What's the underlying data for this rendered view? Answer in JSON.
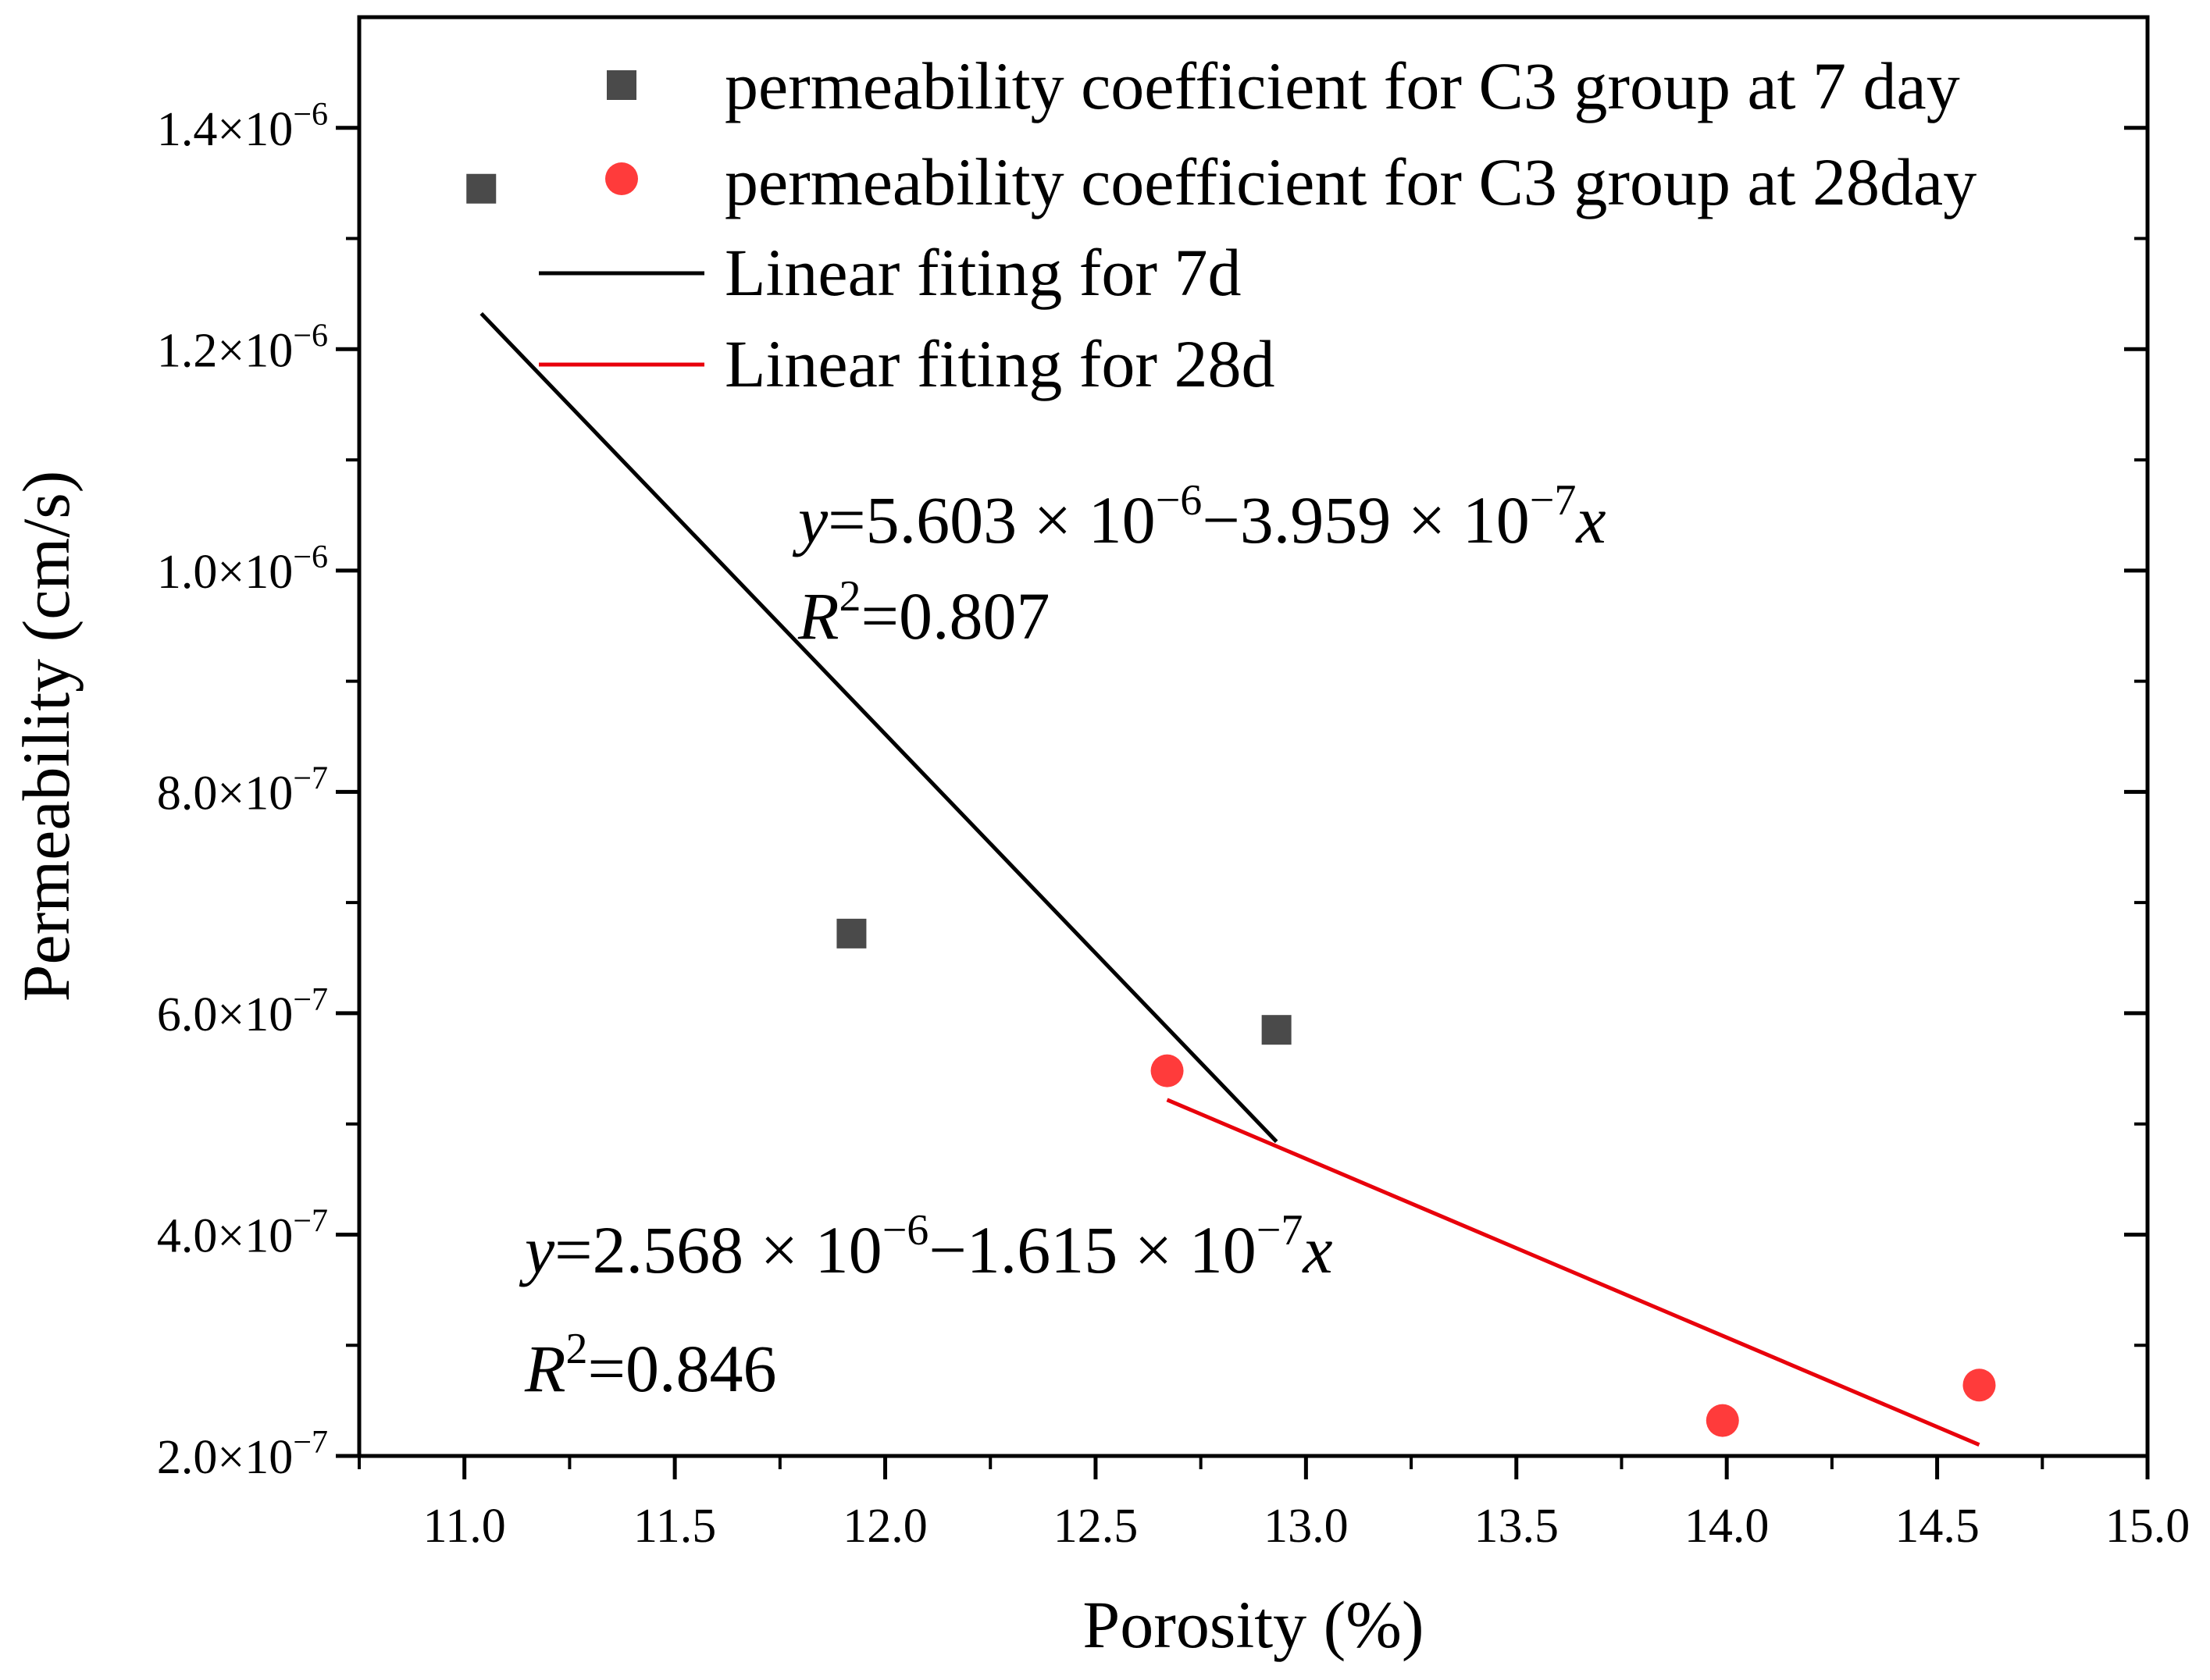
{
  "chart_data": {
    "type": "scatter",
    "title": "",
    "xlabel": "Porosity (%)",
    "ylabel": "Permeability (cm/s)",
    "xlim": [
      10.75,
      15.0
    ],
    "ylim": [
      2e-07,
      1.5e-06
    ],
    "x_ticks": [
      {
        "value": 11.0,
        "label": "11.0"
      },
      {
        "value": 11.5,
        "label": "11.5"
      },
      {
        "value": 12.0,
        "label": "12.0"
      },
      {
        "value": 12.5,
        "label": "12.5"
      },
      {
        "value": 13.0,
        "label": "13.0"
      },
      {
        "value": 13.5,
        "label": "13.5"
      },
      {
        "value": 14.0,
        "label": "14.0"
      },
      {
        "value": 14.5,
        "label": "14.5"
      },
      {
        "value": 15.0,
        "label": "15.0"
      }
    ],
    "y_ticks": [
      {
        "value": 2e-07,
        "mantissa": "2.0",
        "exponent": "−7"
      },
      {
        "value": 4e-07,
        "mantissa": "4.0",
        "exponent": "−7"
      },
      {
        "value": 6e-07,
        "mantissa": "6.0",
        "exponent": "−7"
      },
      {
        "value": 8e-07,
        "mantissa": "8.0",
        "exponent": "−7"
      },
      {
        "value": 1e-06,
        "mantissa": "1.0",
        "exponent": "−6"
      },
      {
        "value": 1.2e-06,
        "mantissa": "1.2",
        "exponent": "−6"
      },
      {
        "value": 1.4e-06,
        "mantissa": "1.4",
        "exponent": "−6"
      }
    ],
    "tick_times": "×10",
    "series": [
      {
        "name": "permeability coefficient for C3 group at 7 day",
        "marker": "square",
        "color": "#4a4a4a",
        "points": [
          {
            "x": 11.04,
            "y": 1.345e-06
          },
          {
            "x": 11.92,
            "y": 6.72e-07
          },
          {
            "x": 12.93,
            "y": 5.85e-07
          }
        ]
      },
      {
        "name": "permeability coefficient for C3 group at 28day",
        "marker": "circle",
        "color": "#ff3b3b",
        "points": [
          {
            "x": 12.67,
            "y": 5.48e-07
          },
          {
            "x": 13.99,
            "y": 2.32e-07
          },
          {
            "x": 14.6,
            "y": 2.64e-07
          }
        ]
      }
    ],
    "fits": [
      {
        "name": "Linear fiting for 7d",
        "color": "#000000",
        "x_range": [
          11.04,
          12.93
        ],
        "intercept": 5.603e-06,
        "slope": -3.959e-07,
        "equation": {
          "y": "y",
          "eq1": "=5.603 × 10",
          "exp1": "−6",
          "mid": "−3.959 × 10",
          "exp2": "−7",
          "x": "x"
        },
        "r2": {
          "R": "R",
          "sup": "2",
          "val": "=0.807"
        }
      },
      {
        "name": "Linear fiting for 28d",
        "color": "#e8000b",
        "x_range": [
          12.67,
          14.6
        ],
        "intercept": 2.568e-06,
        "slope": -1.615e-07,
        "equation": {
          "y": "y",
          "eq1": "=2.568 × 10",
          "exp1": "−6",
          "mid": "−1.615 × 10",
          "exp2": "−7",
          "x": "x"
        },
        "r2": {
          "R": "R",
          "sup": "2",
          "val": "=0.846"
        }
      }
    ],
    "legend_position": "top-right",
    "grid": false
  }
}
